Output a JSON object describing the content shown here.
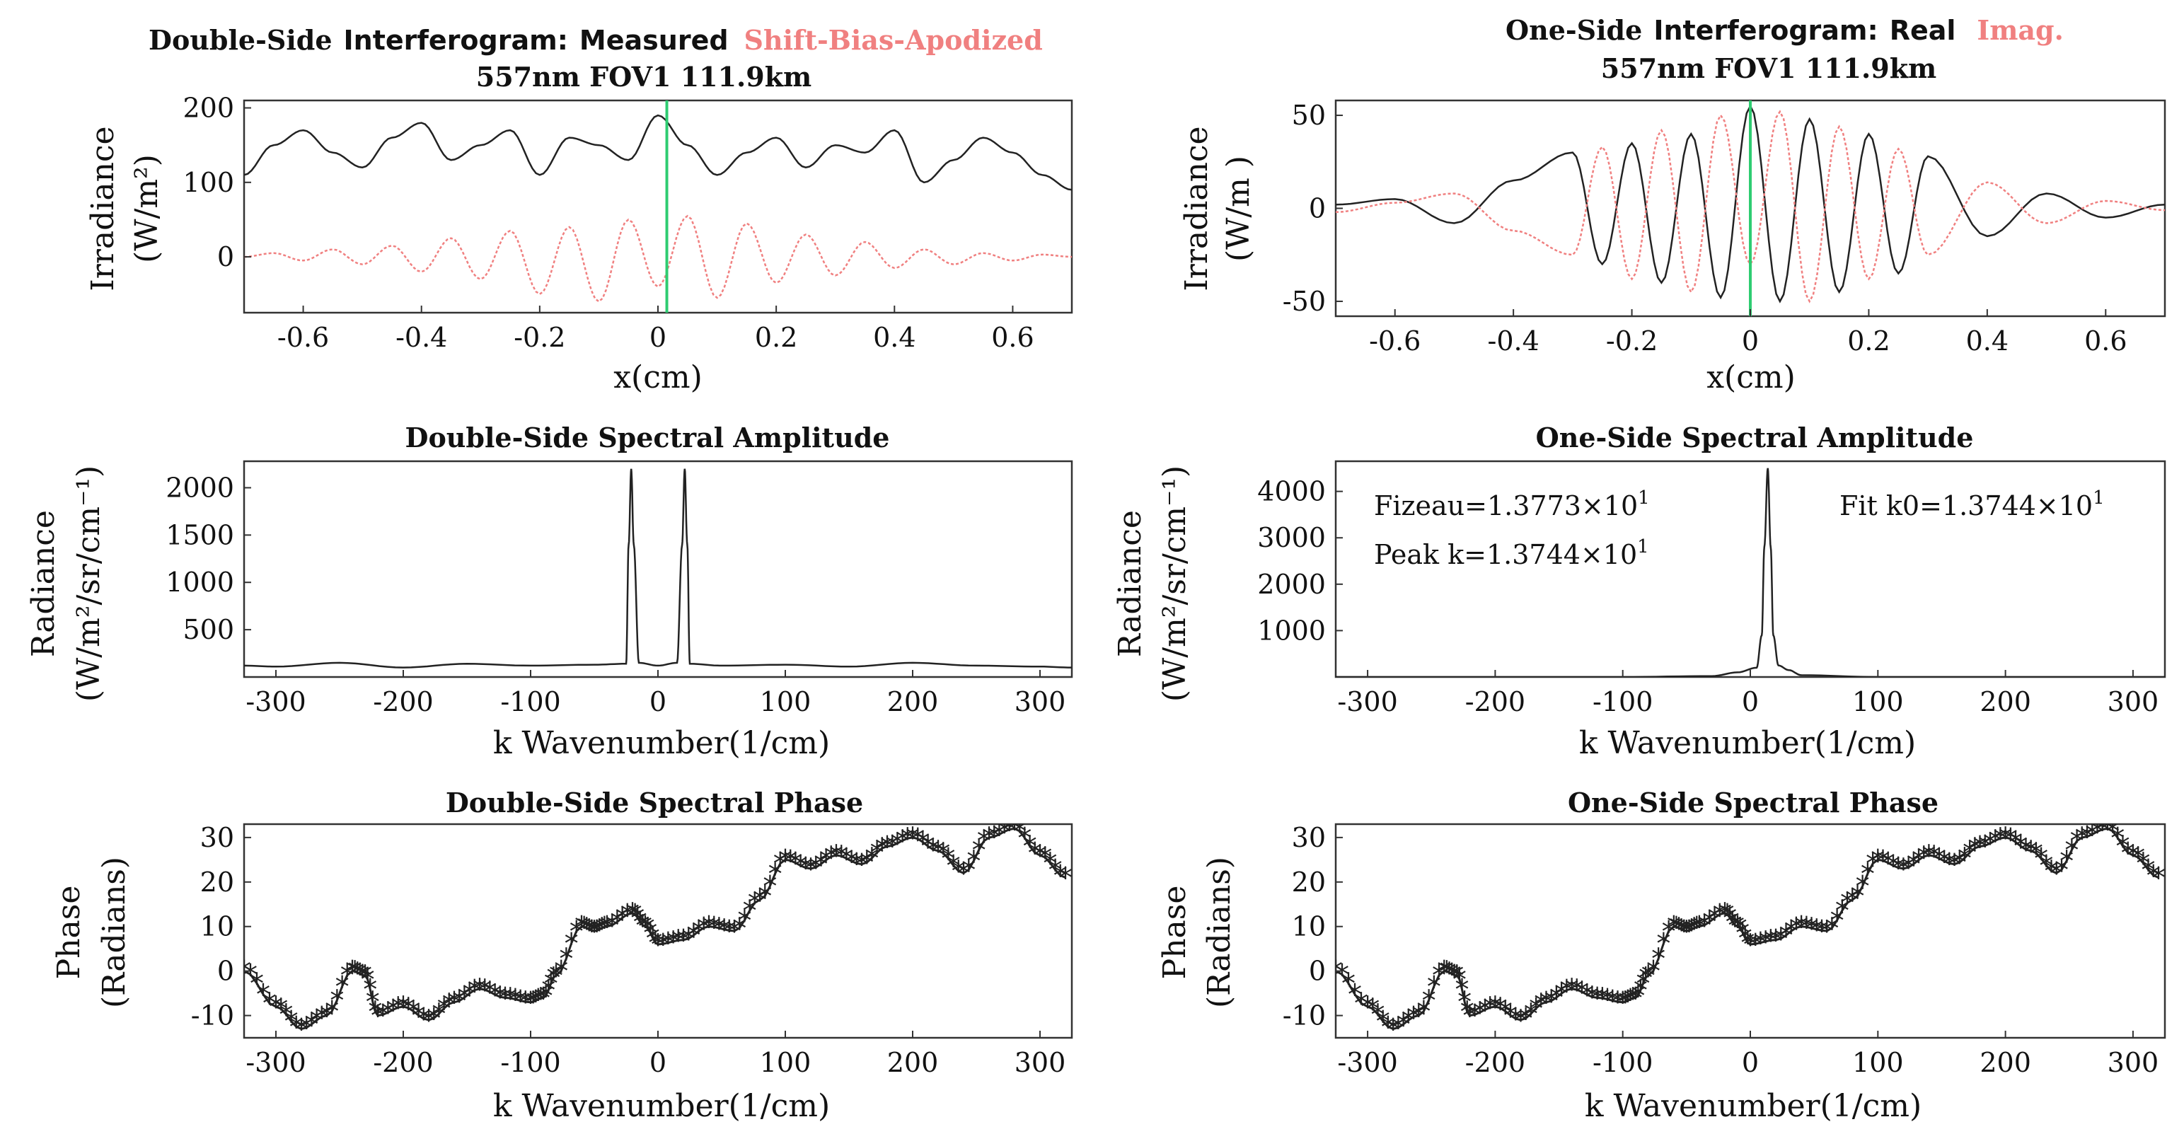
{
  "chart_data": [
    {
      "id": "ds_interferogram",
      "type": "line",
      "title_parts": [
        "Double-Side",
        "Interferogram:",
        "Measured",
        "Shift-Bias-Apodized"
      ],
      "title_line2": "557nm FOV1 111.9km",
      "xlabel": "x(cm)",
      "ylabel": [
        "Irradiance",
        "(W/m²)"
      ],
      "xlim": [
        -0.7,
        0.7
      ],
      "ylim": [
        -75,
        210
      ],
      "xticks": [
        -0.6,
        -0.4,
        -0.2,
        0,
        0.2,
        0.4,
        0.6
      ],
      "xtick_labels": [
        "-0.6",
        "-0.4",
        "-0.2",
        "0",
        "0.2",
        "0.4",
        "0.6"
      ],
      "yticks": [
        0,
        100,
        200
      ],
      "ytick_labels": [
        "0",
        "100",
        "200"
      ],
      "series": [
        {
          "name": "Measured",
          "color": "#222222",
          "x": [
            -0.7,
            -0.65,
            -0.6,
            -0.55,
            -0.5,
            -0.45,
            -0.4,
            -0.35,
            -0.3,
            -0.25,
            -0.2,
            -0.15,
            -0.1,
            -0.05,
            0,
            0.05,
            0.1,
            0.15,
            0.2,
            0.25,
            0.3,
            0.35,
            0.4,
            0.45,
            0.5,
            0.55,
            0.6,
            0.65,
            0.7
          ],
          "values": [
            110,
            150,
            170,
            140,
            120,
            160,
            180,
            130,
            150,
            170,
            110,
            160,
            150,
            130,
            190,
            150,
            110,
            140,
            160,
            120,
            150,
            140,
            170,
            100,
            130,
            160,
            140,
            110,
            90
          ]
        },
        {
          "name": "Shift-Bias-Apodized",
          "color": "#f08080",
          "x": [
            -0.7,
            -0.65,
            -0.6,
            -0.55,
            -0.5,
            -0.45,
            -0.4,
            -0.35,
            -0.3,
            -0.25,
            -0.2,
            -0.15,
            -0.1,
            -0.05,
            0,
            0.05,
            0.1,
            0.15,
            0.2,
            0.25,
            0.3,
            0.35,
            0.4,
            0.45,
            0.5,
            0.55,
            0.6,
            0.65,
            0.7
          ],
          "values": [
            0,
            5,
            -5,
            10,
            -10,
            15,
            -20,
            25,
            -30,
            35,
            -50,
            40,
            -60,
            50,
            -40,
            55,
            -55,
            45,
            -35,
            30,
            -25,
            20,
            -15,
            10,
            -10,
            5,
            -5,
            3,
            0
          ]
        }
      ],
      "vline": {
        "x": 0.015,
        "color": "#2ecc71"
      }
    },
    {
      "id": "os_interferogram",
      "type": "line",
      "title_parts": [
        "One-Side",
        "Interferogram:",
        "Real",
        "Imag."
      ],
      "title_line2": "557nm FOV1 111.9km",
      "xlabel": "x(cm)",
      "ylabel": [
        "Irradiance",
        "(W/m )"
      ],
      "xlim": [
        -0.7,
        0.7
      ],
      "ylim": [
        -58,
        58
      ],
      "xticks": [
        -0.6,
        -0.4,
        -0.2,
        0,
        0.2,
        0.4,
        0.6
      ],
      "xtick_labels": [
        "-0.6",
        "-0.4",
        "-0.2",
        "0",
        "0.2",
        "0.4",
        "0.6"
      ],
      "yticks": [
        -50,
        0,
        50
      ],
      "ytick_labels": [
        "-50",
        "0",
        "50"
      ],
      "series": [
        {
          "name": "Real",
          "color": "#222222",
          "x": [
            -0.7,
            -0.6,
            -0.5,
            -0.4,
            -0.3,
            -0.25,
            -0.2,
            -0.15,
            -0.1,
            -0.05,
            0,
            0.05,
            0.1,
            0.15,
            0.2,
            0.25,
            0.3,
            0.4,
            0.5,
            0.6,
            0.7
          ],
          "values": [
            2,
            5,
            -8,
            15,
            30,
            -30,
            35,
            -40,
            40,
            -48,
            55,
            -50,
            48,
            -45,
            40,
            -35,
            28,
            -15,
            8,
            -5,
            2
          ]
        },
        {
          "name": "Imag.",
          "color": "#f08080",
          "x": [
            -0.7,
            -0.6,
            -0.5,
            -0.4,
            -0.3,
            -0.25,
            -0.2,
            -0.15,
            -0.1,
            -0.05,
            0,
            0.05,
            0.1,
            0.15,
            0.2,
            0.25,
            0.3,
            0.4,
            0.5,
            0.6,
            0.7
          ],
          "values": [
            -2,
            3,
            8,
            -12,
            -25,
            33,
            -38,
            42,
            -45,
            50,
            -30,
            52,
            -50,
            44,
            -38,
            32,
            -25,
            14,
            -8,
            4,
            -1
          ]
        }
      ],
      "vline": {
        "x": 0.0,
        "color": "#2ecc71"
      }
    },
    {
      "id": "ds_amplitude",
      "type": "line",
      "title": "Double-Side Spectral Amplitude",
      "xlabel": "k Wavenumber(1/cm)",
      "ylabel": [
        "Radiance",
        "(W/m²/sr/cm⁻¹)"
      ],
      "xlim": [
        -325,
        325
      ],
      "ylim": [
        0,
        2280
      ],
      "xticks": [
        -300,
        -200,
        -100,
        0,
        100,
        200,
        300
      ],
      "xtick_labels": [
        "-300",
        "-200",
        "-100",
        "0",
        "100",
        "200",
        "300"
      ],
      "yticks": [
        500,
        1000,
        1500,
        2000
      ],
      "ytick_labels": [
        "500",
        "1000",
        "1500",
        "2000"
      ],
      "series": [
        {
          "name": "Amplitude",
          "color": "#222222",
          "x": [
            -325,
            -300,
            -250,
            -200,
            -150,
            -100,
            -50,
            -25,
            -23,
            -21,
            -19,
            -15,
            0,
            15,
            19,
            21,
            23,
            25,
            50,
            100,
            150,
            200,
            250,
            300,
            325
          ],
          "values": [
            120,
            110,
            150,
            100,
            140,
            120,
            130,
            140,
            1400,
            2200,
            1400,
            150,
            120,
            150,
            1400,
            2200,
            1400,
            140,
            120,
            130,
            110,
            150,
            120,
            110,
            100
          ]
        }
      ]
    },
    {
      "id": "os_amplitude",
      "type": "line",
      "title": "One-Side Spectral Amplitude",
      "xlabel": "k Wavenumber(1/cm)",
      "ylabel": [
        "Radiance",
        "(W/m²/sr/cm⁻¹)"
      ],
      "xlim": [
        -325,
        325
      ],
      "ylim": [
        0,
        4650
      ],
      "xticks": [
        -300,
        -200,
        -100,
        0,
        100,
        200,
        300
      ],
      "xtick_labels": [
        "-300",
        "-200",
        "-100",
        "0",
        "100",
        "200",
        "300"
      ],
      "yticks": [
        1000,
        2000,
        3000,
        4000
      ],
      "ytick_labels": [
        "1000",
        "2000",
        "3000",
        "4000"
      ],
      "annotations": [
        {
          "text": "Fizeau=1.3773×10",
          "sup": "1"
        },
        {
          "text": "Peak k=1.3744×10",
          "sup": "1"
        },
        {
          "text": "Fit k0=1.3744×10",
          "sup": "1"
        }
      ],
      "series": [
        {
          "name": "Amplitude",
          "color": "#222222",
          "x": [
            -325,
            -100,
            -30,
            -10,
            5,
            9,
            11,
            13.7,
            16,
            18,
            22,
            30,
            40,
            100,
            325
          ],
          "values": [
            0,
            0,
            20,
            100,
            200,
            900,
            2800,
            4500,
            2800,
            900,
            250,
            150,
            40,
            0,
            0
          ]
        }
      ]
    },
    {
      "id": "ds_phase",
      "type": "scatter",
      "title": "Double-Side Spectral Phase",
      "xlabel": "k Wavenumber(1/cm)",
      "ylabel": [
        "Phase",
        "(Radians)"
      ],
      "xlim": [
        -325,
        325
      ],
      "ylim": [
        -15,
        33
      ],
      "xticks": [
        -300,
        -200,
        -100,
        0,
        100,
        200,
        300
      ],
      "xtick_labels": [
        "-300",
        "-200",
        "-100",
        "0",
        "100",
        "200",
        "300"
      ],
      "yticks": [
        -10,
        0,
        10,
        20,
        30
      ],
      "ytick_labels": [
        "-10",
        "0",
        "10",
        "20",
        "30"
      ],
      "series": [
        {
          "name": "Phase",
          "color": "#222222",
          "x": [
            -325,
            -300,
            -280,
            -260,
            -240,
            -230,
            -220,
            -200,
            -180,
            -160,
            -140,
            -120,
            -100,
            -90,
            -80,
            -60,
            -50,
            -40,
            -20,
            -10,
            0,
            20,
            40,
            60,
            80,
            100,
            120,
            140,
            160,
            180,
            200,
            220,
            240,
            260,
            280,
            300,
            320
          ],
          "values": [
            0,
            -8,
            -13,
            -10,
            0,
            -1,
            -10,
            -8,
            -11,
            -7,
            -4,
            -6,
            -7,
            -6,
            -1,
            10,
            9,
            10,
            13,
            10,
            6,
            7,
            10,
            9,
            16,
            25,
            23,
            26,
            24,
            28,
            30,
            27,
            22,
            30,
            32,
            26,
            21
          ]
        }
      ]
    },
    {
      "id": "os_phase",
      "type": "scatter",
      "title": "One-Side Spectral Phase",
      "xlabel": "k Wavenumber(1/cm)",
      "ylabel": [
        "Phase",
        "(Radians)"
      ],
      "xlim": [
        -325,
        325
      ],
      "ylim": [
        -15,
        33
      ],
      "xticks": [
        -300,
        -200,
        -100,
        0,
        100,
        200,
        300
      ],
      "xtick_labels": [
        "-300",
        "-200",
        "-100",
        "0",
        "100",
        "200",
        "300"
      ],
      "yticks": [
        -10,
        0,
        10,
        20,
        30
      ],
      "ytick_labels": [
        "-10",
        "0",
        "10",
        "20",
        "30"
      ],
      "series": [
        {
          "name": "Phase",
          "color": "#222222",
          "x": [
            -325,
            -300,
            -280,
            -260,
            -240,
            -230,
            -220,
            -200,
            -180,
            -160,
            -140,
            -120,
            -100,
            -90,
            -80,
            -60,
            -50,
            -40,
            -20,
            -10,
            0,
            20,
            40,
            60,
            80,
            100,
            120,
            140,
            160,
            180,
            200,
            220,
            240,
            260,
            280,
            300,
            320
          ],
          "values": [
            0,
            -8,
            -13,
            -10,
            0,
            -1,
            -10,
            -8,
            -11,
            -7,
            -4,
            -6,
            -7,
            -6,
            -1,
            10,
            9,
            10,
            13,
            10,
            6,
            7,
            10,
            9,
            16,
            25,
            23,
            26,
            24,
            28,
            30,
            27,
            22,
            30,
            32,
            26,
            21
          ]
        }
      ]
    }
  ]
}
